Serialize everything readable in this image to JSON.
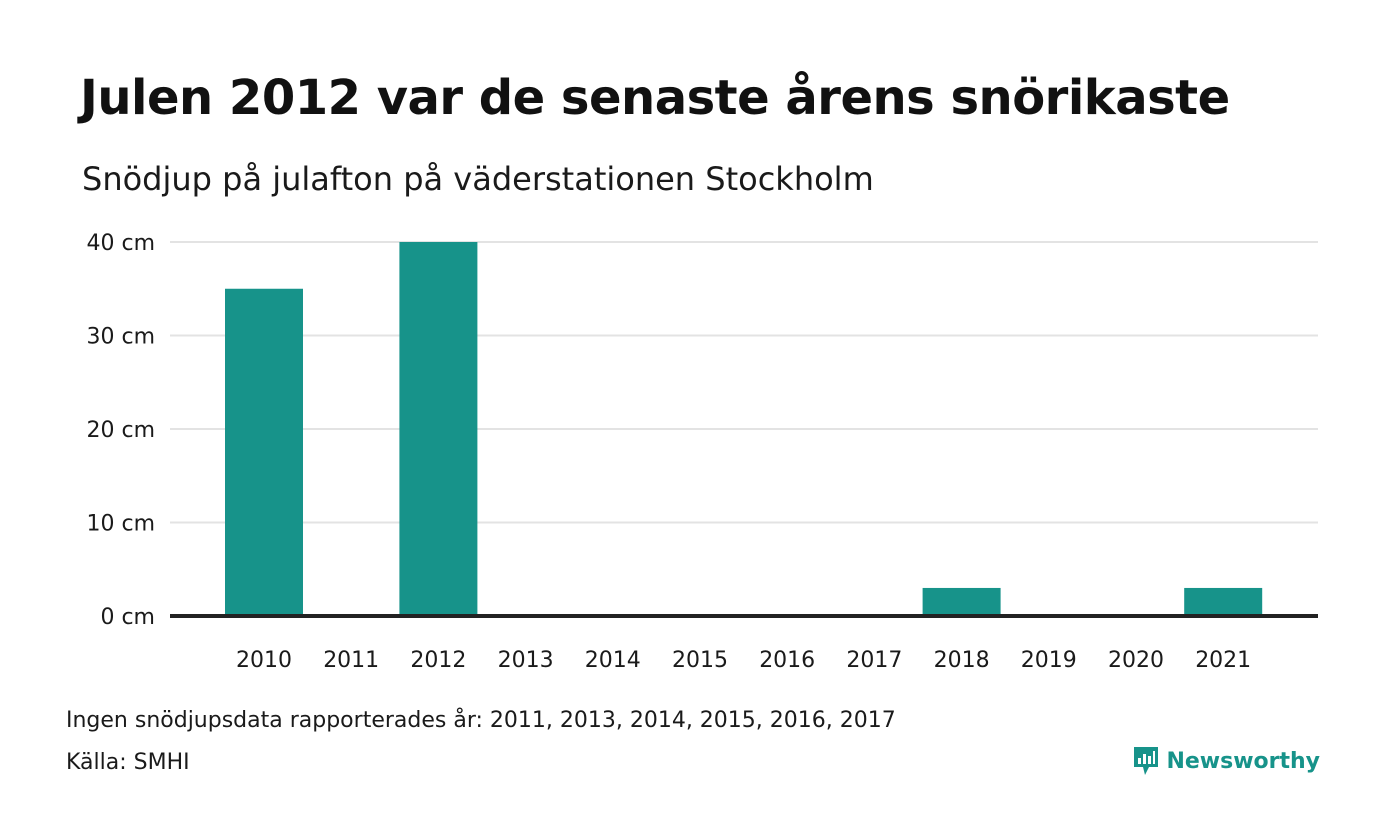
{
  "chart_data": {
    "type": "bar",
    "title": "Julen 2012 var de senaste årens snörikaste",
    "subtitle": "Snödjup på julafton på väderstationen Stockholm",
    "categories": [
      "2010",
      "2011",
      "2012",
      "2013",
      "2014",
      "2015",
      "2016",
      "2017",
      "2018",
      "2019",
      "2020",
      "2021"
    ],
    "values": [
      35,
      null,
      40,
      null,
      null,
      null,
      null,
      null,
      3,
      0,
      0,
      3
    ],
    "ylim": [
      0,
      40
    ],
    "yticks": [
      0,
      10,
      20,
      30,
      40
    ],
    "ytick_labels": [
      "0 cm",
      "10 cm",
      "20 cm",
      "30 cm",
      "40 cm"
    ],
    "grid": true,
    "bar_color": "#17938a"
  },
  "footer": {
    "note": "Ingen snödjupsdata rapporterades år: 2011, 2013, 2014, 2015, 2016, 2017",
    "source": "Källa: SMHI",
    "brand": "Newsworthy"
  },
  "colors": {
    "accent": "#17938a",
    "grid": "#e3e3e3",
    "axis": "#222222"
  }
}
